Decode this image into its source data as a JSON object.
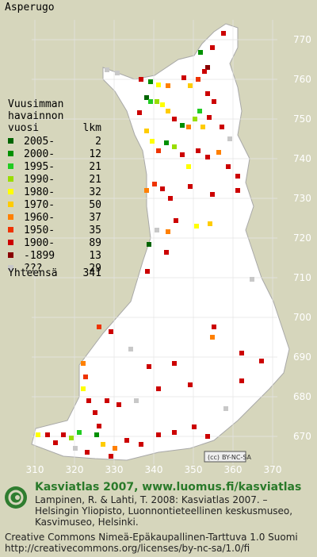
{
  "title": "Asperugo",
  "legend": {
    "heading": [
      "Vuusimman",
      "havainnon",
      "vuosi"
    ],
    "count_heading": "lkm",
    "items": [
      {
        "label": "2005-",
        "count": 2,
        "color": "#006400"
      },
      {
        "label": "2000-",
        "count": 12,
        "color": "#009000"
      },
      {
        "label": "1995-",
        "count": 21,
        "color": "#22cc22"
      },
      {
        "label": "1990-",
        "count": 21,
        "color": "#99dd00"
      },
      {
        "label": "1980-",
        "count": 32,
        "color": "#ffff00"
      },
      {
        "label": "1970-",
        "count": 50,
        "color": "#ffcc00"
      },
      {
        "label": "1960-",
        "count": 37,
        "color": "#ff8000"
      },
      {
        "label": "1950-",
        "count": 35,
        "color": "#ee3300"
      },
      {
        "label": "1900-",
        "count": 89,
        "color": "#cc0000"
      },
      {
        "label": "-1899",
        "count": 13,
        "color": "#880000"
      },
      {
        "label": "???",
        "count": 29,
        "color": "#c8c8c8"
      }
    ],
    "total_label": "Yhteensä",
    "total": 341
  },
  "map": {
    "yticks": [
      770,
      760,
      750,
      740,
      730,
      720,
      710,
      700,
      690,
      680,
      670
    ],
    "xticks": [
      310,
      320,
      330,
      340,
      350,
      360,
      370
    ],
    "license_badge": "BY-NC-SA"
  },
  "footer": {
    "headline": "Kasviatlas 2007, www.luomus.fi/kasviatlas",
    "citation": [
      "Lampinen, R. & Lahti, T. 2008: Kasviatlas 2007. –",
      "Helsingin Yliopisto, Luonnontieteellinen keskusmuseo,",
      "Kasvimuseo, Helsinki."
    ],
    "license": [
      "Creative Commons Nimeä-Epäkaupallinen-Tarttuva 1.0 Suomi",
      "http://creativecommons.org/licenses/by-nc-sa/1.0/fi"
    ]
  }
}
